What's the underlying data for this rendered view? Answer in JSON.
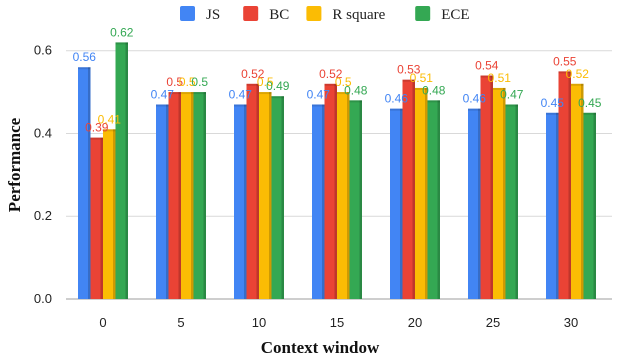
{
  "chart_data": {
    "type": "bar",
    "xlabel": "Context window",
    "ylabel": "Performance",
    "categories": [
      "0",
      "5",
      "10",
      "15",
      "20",
      "25",
      "30"
    ],
    "ylim": [
      0,
      0.65
    ],
    "yticks": [
      "0.0",
      "0.2",
      "0.4",
      "0.6"
    ],
    "ytick_values": [
      0,
      0.2,
      0.4,
      0.6
    ],
    "grid": true,
    "legend_position": "top",
    "series": [
      {
        "name": "JS",
        "color": "#4285f4",
        "values": [
          0.56,
          0.47,
          0.47,
          0.47,
          0.46,
          0.46,
          0.45
        ]
      },
      {
        "name": "BC",
        "color": "#ea4335",
        "values": [
          0.39,
          0.5,
          0.52,
          0.52,
          0.53,
          0.54,
          0.55
        ]
      },
      {
        "name": "R square",
        "color": "#fbbc04",
        "values": [
          0.41,
          0.5,
          0.5,
          0.5,
          0.51,
          0.51,
          0.52
        ]
      },
      {
        "name": "ECE",
        "color": "#34a853",
        "values": [
          0.62,
          0.5,
          0.49,
          0.48,
          0.48,
          0.47,
          0.45
        ]
      }
    ]
  }
}
